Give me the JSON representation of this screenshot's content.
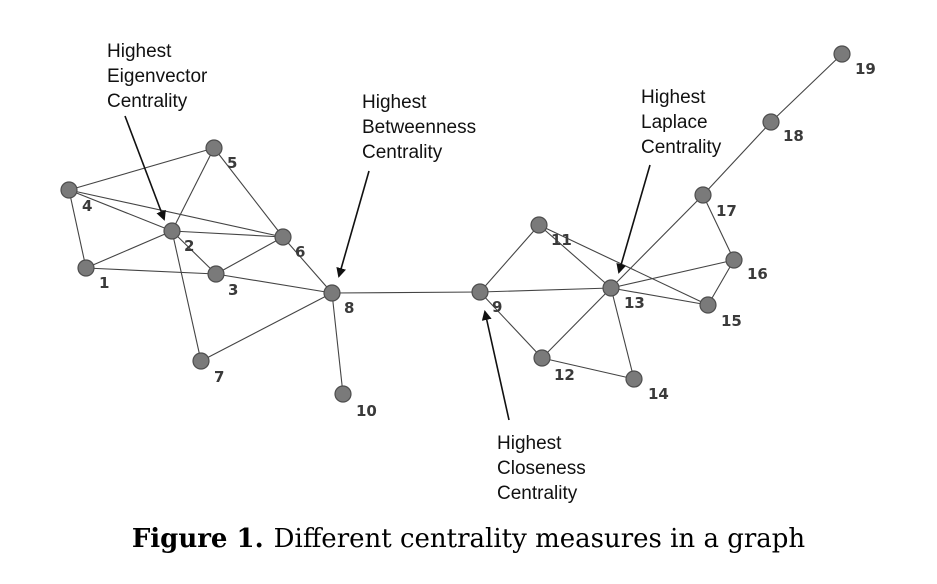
{
  "graph": {
    "nodes": [
      "1",
      "2",
      "3",
      "4",
      "5",
      "6",
      "7",
      "8",
      "9",
      "10",
      "11",
      "12",
      "13",
      "14",
      "15",
      "16",
      "17",
      "18",
      "19"
    ],
    "edges": [
      [
        "4",
        "5"
      ],
      [
        "4",
        "1"
      ],
      [
        "4",
        "2"
      ],
      [
        "4",
        "6"
      ],
      [
        "1",
        "2"
      ],
      [
        "1",
        "3"
      ],
      [
        "2",
        "5"
      ],
      [
        "2",
        "6"
      ],
      [
        "2",
        "3"
      ],
      [
        "2",
        "7"
      ],
      [
        "5",
        "6"
      ],
      [
        "3",
        "6"
      ],
      [
        "3",
        "8"
      ],
      [
        "6",
        "8"
      ],
      [
        "7",
        "8"
      ],
      [
        "8",
        "10"
      ],
      [
        "8",
        "9"
      ],
      [
        "9",
        "11"
      ],
      [
        "9",
        "12"
      ],
      [
        "9",
        "13"
      ],
      [
        "11",
        "13"
      ],
      [
        "11",
        "15"
      ],
      [
        "12",
        "13"
      ],
      [
        "12",
        "14"
      ],
      [
        "13",
        "14"
      ],
      [
        "13",
        "16"
      ],
      [
        "13",
        "15"
      ],
      [
        "13",
        "17"
      ],
      [
        "16",
        "17"
      ],
      [
        "16",
        "15"
      ],
      [
        "17",
        "18"
      ],
      [
        "18",
        "19"
      ]
    ]
  },
  "annotations": {
    "eigenvector": [
      "Highest",
      "Eigenvector",
      "Centrality"
    ],
    "betweenness": [
      "Highest",
      "Betweenness",
      "Centrality"
    ],
    "laplace": [
      "Highest",
      "Laplace",
      "Centrality"
    ],
    "closeness": [
      "Highest",
      "Closeness",
      "Centrality"
    ]
  },
  "caption": {
    "label": "Figure 1.",
    "text": "Different centrality measures in a graph"
  }
}
